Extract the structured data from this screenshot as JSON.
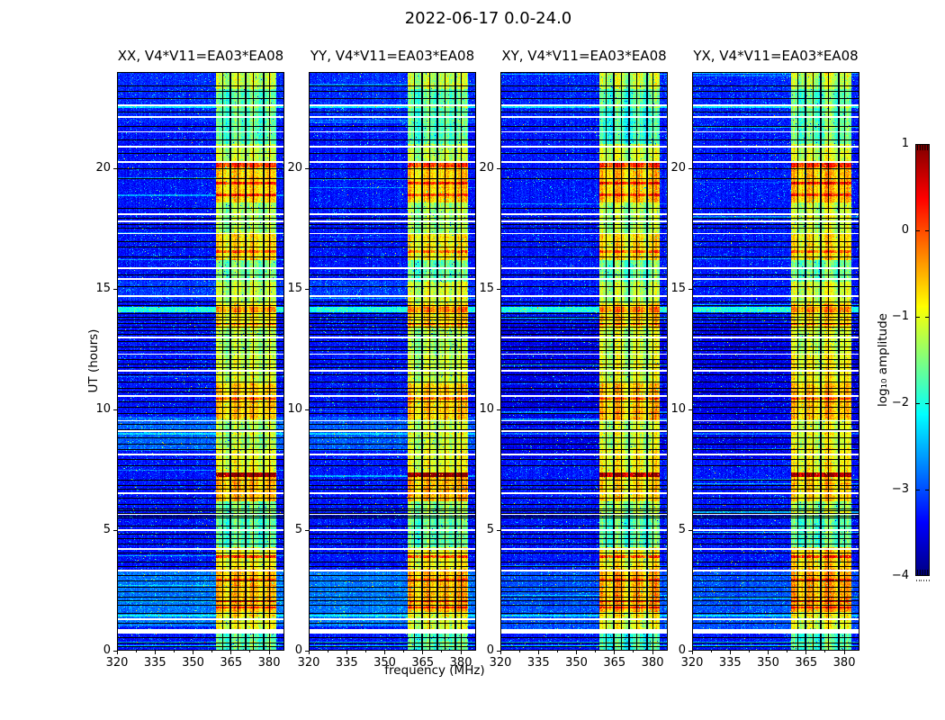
{
  "figure_title": "2022-06-17 0.0-24.0",
  "chart_data": {
    "type": "heatmap",
    "title": "2022-06-17 0.0-24.0",
    "xlabel": "frequency (MHz)",
    "ylabel": "UT (hours)",
    "colormap": "jet",
    "value_scale": "log10 amplitude",
    "clim": [
      -4,
      1
    ],
    "xlim": [
      320,
      386
    ],
    "ylim": [
      0,
      24
    ],
    "x_tick_labels": [
      "320",
      "335",
      "350",
      "365",
      "380"
    ],
    "x_tick_values": [
      320,
      335,
      350,
      365,
      380
    ],
    "y_tick_labels": [
      "0",
      "5",
      "10",
      "15",
      "20"
    ],
    "y_tick_values": [
      0,
      5,
      10,
      15,
      20
    ],
    "colorbar": {
      "label": "log₁₀ amplitude",
      "tick_labels": [
        "1",
        "0",
        "−1",
        "−2",
        "−3",
        "−4"
      ],
      "tick_values": [
        1,
        0,
        -1,
        -2,
        -3,
        -4
      ]
    },
    "panels": [
      {
        "title": "XX, V4*V11=EA03*EA08",
        "seed": 101,
        "light_regions": [
          [
            1.0,
            3.35,
            0.5
          ],
          [
            8.3,
            9.7,
            0.4
          ],
          [
            14.55,
            15.35,
            0.2
          ],
          [
            21.9,
            24,
            0.12
          ]
        ]
      },
      {
        "title": "YY, V4*V11=EA03*EA08",
        "seed": 202,
        "light_regions": [
          [
            1.0,
            3.35,
            0.5
          ],
          [
            8.3,
            9.7,
            0.35
          ],
          [
            14.55,
            15.35,
            0.2
          ],
          [
            21.9,
            24,
            0.12
          ]
        ]
      },
      {
        "title": "XY, V4*V11=EA03*EA08",
        "seed": 303,
        "light_regions": [
          [
            0.9,
            3.3,
            0.3
          ],
          [
            8.0,
            13.6,
            -0.18
          ],
          [
            22.0,
            24,
            0.08
          ]
        ]
      },
      {
        "title": "YX, V4*V11=EA03*EA08",
        "seed": 404,
        "light_regions": [
          [
            0.9,
            3.3,
            0.3
          ],
          [
            8.0,
            13.6,
            -0.18
          ],
          [
            22.0,
            24,
            0.08
          ]
        ]
      }
    ],
    "background_level": -3.3,
    "band": {
      "f_start": 359.2,
      "f_end": 382.8,
      "level": -1.35,
      "dividers_mhz": [
        364.6,
        370.7,
        377.8
      ],
      "thin_black_cols_mhz": [
        361.6,
        367.6,
        373.9,
        380.3
      ]
    },
    "band_time_segments": [
      [
        23.3,
        24,
        0.1
      ],
      [
        22.6,
        23.3,
        -0.3
      ],
      [
        21.0,
        22.6,
        -0.45
      ],
      [
        20.3,
        21.0,
        0.2
      ],
      [
        18.6,
        20.3,
        0.65
      ],
      [
        17.3,
        18.6,
        0.1
      ],
      [
        16.2,
        17.3,
        0.5
      ],
      [
        15.3,
        16.2,
        -0.2
      ],
      [
        14.4,
        15.3,
        0.15
      ],
      [
        13.35,
        14.4,
        0.55
      ],
      [
        12.3,
        13.35,
        0.1
      ],
      [
        11.1,
        12.3,
        0.3
      ],
      [
        9.6,
        11.1,
        0.6
      ],
      [
        8.4,
        9.6,
        0.15
      ],
      [
        7.4,
        8.4,
        0.3
      ],
      [
        6.2,
        7.4,
        0.7
      ],
      [
        5.6,
        6.2,
        -0.1
      ],
      [
        4.3,
        5.6,
        -0.35
      ],
      [
        3.4,
        4.3,
        0.5
      ],
      [
        1.6,
        3.4,
        0.75
      ],
      [
        0.9,
        1.6,
        0.3
      ],
      [
        0.0,
        0.9,
        -0.5
      ]
    ],
    "white_gap_times": [
      [
        22.62,
        2
      ],
      [
        22.12,
        2
      ],
      [
        21.5,
        1
      ],
      [
        20.92,
        2
      ],
      [
        20.28,
        2
      ],
      [
        18.1,
        2
      ],
      [
        17.82,
        2
      ],
      [
        17.3,
        1
      ],
      [
        15.85,
        2
      ],
      [
        15.42,
        2
      ],
      [
        14.72,
        2
      ],
      [
        13.0,
        2
      ],
      [
        12.28,
        1
      ],
      [
        11.62,
        2
      ],
      [
        10.58,
        2
      ],
      [
        9.55,
        1
      ],
      [
        9.1,
        2
      ],
      [
        8.12,
        2
      ],
      [
        6.55,
        2
      ],
      [
        5.65,
        1
      ],
      [
        5.0,
        2
      ],
      [
        4.2,
        2
      ],
      [
        3.32,
        2
      ],
      [
        1.32,
        2
      ],
      [
        0.82,
        5
      ]
    ],
    "black_line_times": [
      23.45,
      23.2,
      22.9,
      22.35,
      21.75,
      21.2,
      20.65,
      20.0,
      19.6,
      18.35,
      17.95,
      17.7,
      17.55,
      17.0,
      16.75,
      16.35,
      15.6,
      15.1,
      14.5,
      14.35,
      13.98,
      13.86,
      13.72,
      13.58,
      13.42,
      13.3,
      13.15,
      12.85,
      12.6,
      12.45,
      12.1,
      11.9,
      11.75,
      11.45,
      11.15,
      10.9,
      10.75,
      10.35,
      10.1,
      9.85,
      9.4,
      9.2,
      8.85,
      8.6,
      8.35,
      7.95,
      7.7,
      7.1,
      6.85,
      6.7,
      6.35,
      6.1,
      5.9,
      5.82,
      5.7,
      5.6,
      5.52,
      5.2,
      4.85,
      4.65,
      4.45,
      4.05,
      3.7,
      3.5,
      3.15,
      2.9,
      2.65,
      2.45,
      2.25,
      2.1,
      1.9,
      1.55,
      1.15,
      0.55,
      0.35,
      0.18
    ],
    "red_event_times": [
      [
        7.3,
        0.18,
        1.5
      ],
      [
        20.15,
        0.22,
        0.75
      ],
      [
        19.4,
        0.1,
        0.9
      ],
      [
        18.9,
        0.1,
        0.75
      ],
      [
        16.55,
        0.1,
        0.7
      ],
      [
        13.55,
        0.08,
        0.8
      ],
      [
        10.45,
        0.08,
        0.7
      ],
      [
        3.9,
        0.1,
        1.0
      ],
      [
        2.95,
        0.08,
        0.7
      ],
      [
        2.05,
        0.08,
        0.9
      ],
      [
        1.8,
        0.08,
        0.8
      ]
    ],
    "hot_row_times": [
      [
        14.15,
        0.22,
        1.3
      ],
      [
        22.55,
        0.08,
        0.9
      ],
      [
        9.0,
        0.06,
        0.6
      ],
      [
        1.45,
        0.06,
        0.7
      ],
      [
        0.2,
        0.07,
        0.9
      ],
      [
        0.33,
        0.05,
        0.8
      ]
    ]
  }
}
